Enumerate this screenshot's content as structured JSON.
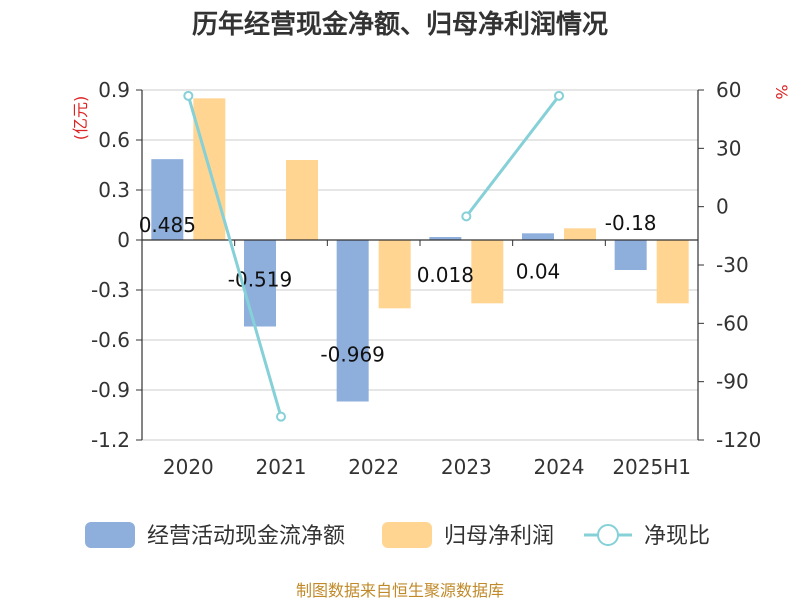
{
  "chart_data": {
    "type": "bar",
    "title": "历年经营现金净额、归母净利润情况",
    "left_unit": "(亿元)",
    "right_unit": "%",
    "categories": [
      "2020",
      "2021",
      "2022",
      "2023",
      "2024",
      "2025H1"
    ],
    "series": [
      {
        "name": "经营活动现金流净额",
        "kind": "bar",
        "axis": "left",
        "color": "#8eaedb",
        "values": [
          0.485,
          -0.519,
          -0.969,
          0.018,
          0.04,
          -0.18
        ],
        "labels": [
          "0.485",
          "-0.519",
          "-0.969",
          "0.018",
          "0.04",
          "-0.18"
        ]
      },
      {
        "name": "归母净利润",
        "kind": "bar",
        "axis": "left",
        "color": "#ffd591",
        "values": [
          0.85,
          0.48,
          -0.41,
          -0.38,
          0.07,
          -0.38
        ]
      },
      {
        "name": "净现比",
        "kind": "line",
        "axis": "right",
        "color": "#86d0d8",
        "values": [
          57,
          -108,
          null,
          -5,
          57,
          null
        ]
      }
    ],
    "left_axis": {
      "min": -1.2,
      "max": 0.9,
      "ticks": [
        0.9,
        0.6,
        0.3,
        0,
        -0.3,
        -0.6,
        -0.9,
        -1.2
      ],
      "tick_labels": [
        "0.9",
        "0.6",
        "0.3",
        "0",
        "-0.3",
        "-0.6",
        "-0.9",
        "-1.2"
      ]
    },
    "right_axis": {
      "min": -120,
      "max": 60,
      "ticks": [
        60,
        30,
        0,
        -30,
        -60,
        -90,
        -120
      ],
      "tick_labels": [
        "60",
        "30",
        "0",
        "-30",
        "-60",
        "-90",
        "-120"
      ]
    },
    "grid": true,
    "legend_position": "bottom"
  },
  "source_text": "制图数据来自恒生聚源数据库"
}
